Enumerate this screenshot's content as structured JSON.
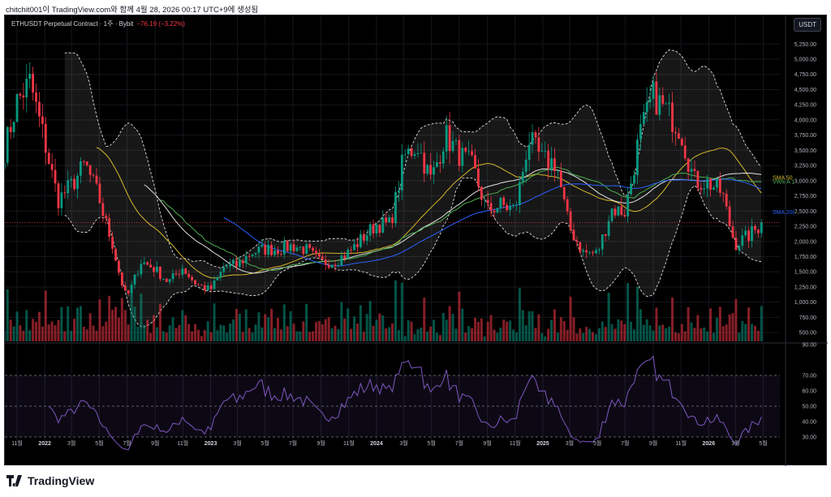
{
  "caption": "chitchit001이 TradingView.com와 함께 4월 28, 2026 00:17 UTC+9에 생성됨",
  "header": {
    "symbol": "ETHUSDT Perpetual Contract · 1주 · Bybit",
    "change": "−76.19 (−3.22%)",
    "currency_button": "USDT"
  },
  "legend": {
    "sma50": "SMA 50",
    "vwma": "VWMA 1",
    "sma200": "SMA 20("
  },
  "brand": "TradingView",
  "colors": {
    "up": "#089981",
    "down": "#f23645",
    "sma50": "#d4b82c",
    "vwma": "#4caf50",
    "sma200": "#2962ff",
    "sma100": "#e0e0e0",
    "rsi": "#7e57c2",
    "band": "#ffffff"
  },
  "chart_data": {
    "type": "candlestick",
    "timeframe": "1W",
    "ylim": [
      500,
      5250
    ],
    "price_ticks": [
      "5,250.00",
      "5,000.00",
      "4,750.00",
      "4,500.00",
      "4,250.00",
      "4,000.00",
      "3,750.00",
      "3,500.00",
      "3,250.00",
      "3,000.00",
      "2,750.00",
      "2,500.00",
      "2,250.00",
      "2,000.00",
      "1,750.00",
      "1,500.00",
      "1,250.00",
      "1,000.00",
      "750.00",
      "500.00"
    ],
    "rsi_ticks": [
      "90.00",
      "70.00",
      "60.00",
      "50.00",
      "40.00",
      "30.00"
    ],
    "x_ticks": [
      {
        "label": "11월",
        "date": "2021-11-01"
      },
      {
        "label": "2022",
        "date": "2022-01-01",
        "bold": true
      },
      {
        "label": "3월",
        "date": "2022-03-01"
      },
      {
        "label": "5월",
        "date": "2022-05-01"
      },
      {
        "label": "7월",
        "date": "2022-07-01"
      },
      {
        "label": "9월",
        "date": "2022-09-01"
      },
      {
        "label": "11월",
        "date": "2022-11-01"
      },
      {
        "label": "2023",
        "date": "2023-01-01",
        "bold": true
      },
      {
        "label": "3월",
        "date": "2023-03-01"
      },
      {
        "label": "5월",
        "date": "2023-05-01"
      },
      {
        "label": "7월",
        "date": "2023-07-01"
      },
      {
        "label": "9월",
        "date": "2023-09-01"
      },
      {
        "label": "11월",
        "date": "2023-11-01"
      },
      {
        "label": "2024",
        "date": "2024-01-01",
        "bold": true
      },
      {
        "label": "3월",
        "date": "2024-03-01"
      },
      {
        "label": "5월",
        "date": "2024-05-01"
      },
      {
        "label": "7월",
        "date": "2024-07-01"
      },
      {
        "label": "9월",
        "date": "2024-09-01"
      },
      {
        "label": "11월",
        "date": "2024-11-01"
      },
      {
        "label": "2025",
        "date": "2025-01-01",
        "bold": true
      },
      {
        "label": "3월",
        "date": "2025-03-01"
      },
      {
        "label": "5월",
        "date": "2025-05-01"
      },
      {
        "label": "7월",
        "date": "2025-07-01"
      },
      {
        "label": "9월",
        "date": "2025-09-01"
      },
      {
        "label": "11월",
        "date": "2025-11-01"
      },
      {
        "label": "2026",
        "date": "2026-01-01",
        "bold": true
      },
      {
        "label": "3월",
        "date": "2026-03-01"
      },
      {
        "label": "5월",
        "date": "2026-05-01"
      }
    ],
    "monthly_close_approx": {
      "2021-09": 3400,
      "2021-10": 4300,
      "2021-11": 4630,
      "2021-12": 3680,
      "2022-01": 2690,
      "2022-02": 2920,
      "2022-03": 3280,
      "2022-04": 2730,
      "2022-05": 1940,
      "2022-06": 1070,
      "2022-07": 1680,
      "2022-08": 1550,
      "2022-09": 1330,
      "2022-10": 1570,
      "2022-11": 1300,
      "2022-12": 1200,
      "2023-01": 1585,
      "2023-02": 1605,
      "2023-03": 1820,
      "2023-04": 1870,
      "2023-05": 1870,
      "2023-06": 1930,
      "2023-07": 1860,
      "2023-08": 1650,
      "2023-09": 1670,
      "2023-10": 1815,
      "2023-11": 2050,
      "2023-12": 2280,
      "2024-01": 2280,
      "2024-02": 3380,
      "2024-03": 3600,
      "2024-04": 3010,
      "2024-05": 3760,
      "2024-06": 3440,
      "2024-07": 3230,
      "2024-08": 2510,
      "2024-09": 2600,
      "2024-10": 2520,
      "2024-11": 3700,
      "2024-12": 3330,
      "2025-01": 3300,
      "2025-02": 2240,
      "2025-03": 1820,
      "2025-04": 1800,
      "2025-05": 2530,
      "2025-06": 2490,
      "2025-07": 3700,
      "2025-08": 4400,
      "2025-09": 4150,
      "2025-10": 3850,
      "2025-11": 3000,
      "2025-12": 2970,
      "2026-01": 2800,
      "2026-02": 1950,
      "2026-03": 2100,
      "2026-04": 2312
    },
    "indicators": [
      "Bollinger Bands (20, 2)",
      "SMA 50",
      "SMA 100",
      "VWMA",
      "SMA 200",
      "Volume",
      "RSI 14"
    ],
    "rsi_levels": [
      70,
      50,
      30
    ]
  }
}
